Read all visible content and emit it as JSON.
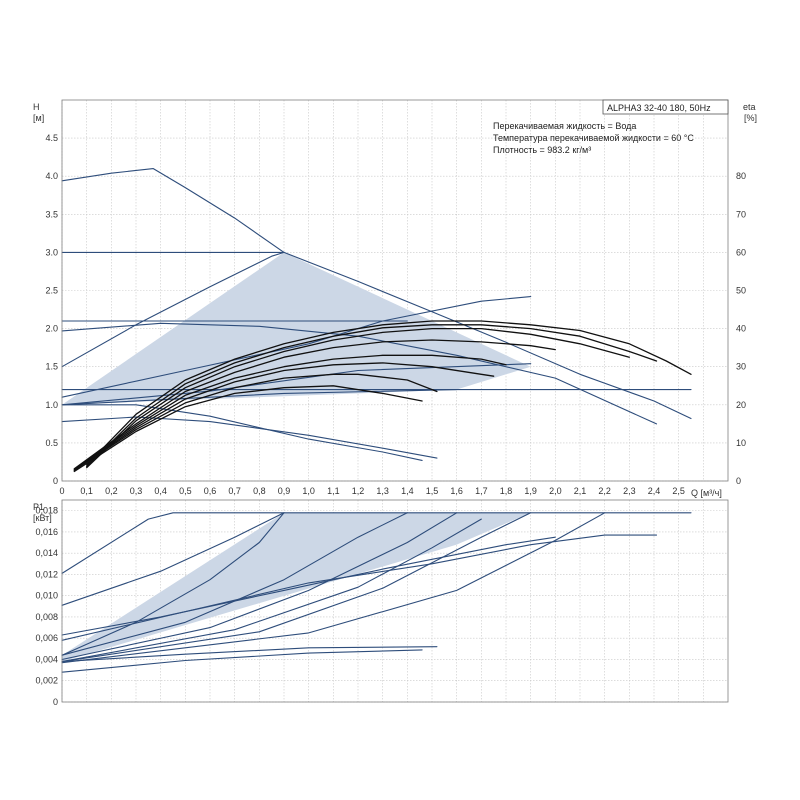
{
  "model_box": "ALPHA3 32-40 180, 50Hz",
  "info_lines": [
    "Перекачиваемая жидкость = Вода",
    "Температура перекачиваемой жидкости = 60 °C",
    "Плотность = 983.2 кг/м³"
  ],
  "colors": {
    "curve": "#2e4d7b",
    "eta": "#111111",
    "fill": "#ccd7e6",
    "grid": "#c8c8c8"
  },
  "chart_data": [
    {
      "type": "line",
      "name": "head",
      "ylabel_top": "H",
      "ylabel_unit": "[м]",
      "y2label_top": "eta",
      "y2label_unit": "[%]",
      "xlabel": "Q [м³/ч]",
      "xlim": [
        0,
        2.7
      ],
      "ylim": [
        0,
        5.0
      ],
      "y2lim": [
        0,
        100
      ],
      "x_ticks": [
        "0",
        "0,1",
        "0,2",
        "0,3",
        "0,4",
        "0,5",
        "0,6",
        "0,7",
        "0,8",
        "0,9",
        "1,0",
        "1,1",
        "1,2",
        "1,3",
        "1,4",
        "1,5",
        "1,6",
        "1,7",
        "1,8",
        "1,9",
        "2,0",
        "2,1",
        "2,2",
        "2,3",
        "2,4",
        "2,5"
      ],
      "y_ticks": [
        "0",
        "0.5",
        "1.0",
        "1.5",
        "2.0",
        "2.5",
        "3.0",
        "3.5",
        "4.0",
        "4.5"
      ],
      "y2_ticks": [
        "0",
        "10",
        "20",
        "30",
        "40",
        "50",
        "60",
        "70",
        "80"
      ],
      "operating_area": [
        [
          0,
          1.0
        ],
        [
          0.9,
          3.0
        ],
        [
          1.9,
          1.5
        ],
        [
          1.6,
          1.2
        ],
        [
          0,
          1.0
        ]
      ],
      "series": [
        {
          "kind": "pump",
          "points": [
            [
              0,
              3.94
            ],
            [
              0.2,
              4.04
            ],
            [
              0.37,
              4.1
            ],
            [
              0.5,
              3.85
            ],
            [
              0.7,
              3.45
            ],
            [
              0.9,
              3.0
            ],
            [
              1.2,
              2.62
            ],
            [
              1.5,
              2.22
            ],
            [
              1.8,
              1.82
            ],
            [
              2.1,
              1.4
            ],
            [
              2.4,
              1.05
            ],
            [
              2.55,
              0.82
            ]
          ]
        },
        {
          "kind": "pump",
          "points": [
            [
              0,
              3.0
            ],
            [
              0.9,
              3.0
            ]
          ]
        },
        {
          "kind": "pump",
          "points": [
            [
              0,
              2.1
            ],
            [
              1.4,
              2.1
            ]
          ]
        },
        {
          "kind": "pump",
          "points": [
            [
              0,
              1.2
            ],
            [
              2.55,
              1.2
            ]
          ]
        },
        {
          "kind": "pump",
          "points": [
            [
              0,
              1.5
            ],
            [
              0.3,
              2.05
            ],
            [
              0.6,
              2.55
            ],
            [
              0.85,
              2.95
            ],
            [
              0.9,
              3.0
            ]
          ]
        },
        {
          "kind": "pump",
          "points": [
            [
              0,
              1.1
            ],
            [
              0.5,
              1.45
            ],
            [
              1.0,
              1.8
            ],
            [
              1.3,
              2.1
            ],
            [
              1.7,
              2.36
            ],
            [
              1.9,
              2.42
            ]
          ]
        },
        {
          "kind": "pump",
          "points": [
            [
              0,
              1.0
            ],
            [
              0.6,
              1.18
            ],
            [
              1.2,
              1.45
            ],
            [
              1.9,
              1.54
            ]
          ]
        },
        {
          "kind": "pump",
          "points": [
            [
              0,
              1.0
            ],
            [
              0.9,
              1.15
            ],
            [
              1.6,
              1.2
            ]
          ]
        },
        {
          "kind": "pump",
          "points": [
            [
              0,
              1.97
            ],
            [
              0.4,
              2.07
            ],
            [
              0.8,
              2.03
            ],
            [
              1.2,
              1.9
            ],
            [
              1.6,
              1.65
            ],
            [
              2.0,
              1.35
            ],
            [
              2.41,
              0.75
            ]
          ]
        },
        {
          "kind": "pump",
          "points": [
            [
              0,
              0.78
            ],
            [
              0.3,
              0.84
            ],
            [
              0.6,
              0.78
            ],
            [
              1.0,
              0.6
            ],
            [
              1.3,
              0.43
            ],
            [
              1.52,
              0.3
            ]
          ]
        },
        {
          "kind": "pump",
          "points": [
            [
              0,
              1.0
            ],
            [
              0.3,
              1.0
            ],
            [
              0.6,
              0.85
            ],
            [
              1.0,
              0.55
            ],
            [
              1.3,
              0.38
            ],
            [
              1.46,
              0.27
            ]
          ]
        },
        {
          "kind": "eta",
          "points": [
            [
              0.1,
              4.2
            ],
            [
              0.3,
              17.5
            ],
            [
              0.5,
              26.5
            ],
            [
              0.7,
              32
            ],
            [
              0.9,
              36
            ],
            [
              1.1,
              39
            ],
            [
              1.3,
              41
            ],
            [
              1.5,
              42
            ],
            [
              1.7,
              42
            ],
            [
              1.9,
              41
            ],
            [
              2.1,
              39.5
            ],
            [
              2.3,
              36
            ],
            [
              2.45,
              31.5
            ],
            [
              2.55,
              28
            ]
          ]
        },
        {
          "kind": "eta",
          "points": [
            [
              0.1,
              3.8
            ],
            [
              0.3,
              16.5
            ],
            [
              0.5,
              25.5
            ],
            [
              0.7,
              31
            ],
            [
              0.9,
              35
            ],
            [
              1.1,
              38
            ],
            [
              1.3,
              40.2
            ],
            [
              1.5,
              41
            ],
            [
              1.7,
              41
            ],
            [
              1.9,
              40
            ],
            [
              2.1,
              38
            ],
            [
              2.3,
              34
            ],
            [
              2.41,
              31.5
            ]
          ]
        },
        {
          "kind": "eta",
          "points": [
            [
              0.1,
              3.5
            ],
            [
              0.3,
              15.8
            ],
            [
              0.5,
              24.5
            ],
            [
              0.7,
              30
            ],
            [
              0.9,
              34
            ],
            [
              1.1,
              37
            ],
            [
              1.3,
              39
            ],
            [
              1.5,
              40
            ],
            [
              1.7,
              40
            ],
            [
              1.9,
              38.5
            ],
            [
              2.1,
              36
            ],
            [
              2.3,
              32.5
            ]
          ]
        },
        {
          "kind": "eta",
          "points": [
            [
              0.05,
              3.2
            ],
            [
              0.3,
              15
            ],
            [
              0.5,
              23.5
            ],
            [
              0.7,
              28.5
            ],
            [
              0.9,
              32.5
            ],
            [
              1.1,
              35
            ],
            [
              1.3,
              36.5
            ],
            [
              1.5,
              37
            ],
            [
              1.7,
              36.5
            ],
            [
              1.9,
              35.5
            ],
            [
              2.0,
              34.5
            ]
          ]
        },
        {
          "kind": "eta",
          "points": [
            [
              0.05,
              3.0
            ],
            [
              0.3,
              14.5
            ],
            [
              0.5,
              22.5
            ],
            [
              0.7,
              27
            ],
            [
              0.9,
              30
            ],
            [
              1.1,
              32
            ],
            [
              1.3,
              33
            ],
            [
              1.5,
              33
            ],
            [
              1.7,
              32
            ],
            [
              1.8,
              30.5
            ]
          ]
        },
        {
          "kind": "eta",
          "points": [
            [
              0.05,
              2.8
            ],
            [
              0.3,
              14
            ],
            [
              0.5,
              21.5
            ],
            [
              0.7,
              26
            ],
            [
              0.9,
              29
            ],
            [
              1.1,
              30.5
            ],
            [
              1.3,
              31
            ],
            [
              1.5,
              30
            ],
            [
              1.7,
              28
            ],
            [
              1.75,
              27.5
            ]
          ]
        },
        {
          "kind": "eta",
          "points": [
            [
              0.05,
              2.8
            ],
            [
              0.3,
              13.5
            ],
            [
              0.5,
              20.5
            ],
            [
              0.7,
              24.5
            ],
            [
              0.9,
              27
            ],
            [
              1.1,
              28
            ],
            [
              1.2,
              28
            ],
            [
              1.4,
              26.5
            ],
            [
              1.52,
              23.5
            ]
          ]
        },
        {
          "kind": "eta",
          "points": [
            [
              0.05,
              2.5
            ],
            [
              0.3,
              13
            ],
            [
              0.5,
              19.5
            ],
            [
              0.7,
              23
            ],
            [
              0.9,
              24.5
            ],
            [
              1.1,
              25
            ],
            [
              1.3,
              23
            ],
            [
              1.46,
              21
            ]
          ]
        }
      ]
    },
    {
      "type": "line",
      "name": "power",
      "ylabel_top": "P1",
      "ylabel_unit": "[кВт]",
      "xlim": [
        0,
        2.7
      ],
      "ylim": [
        0,
        0.019
      ],
      "y_ticks": [
        "0",
        "0,002",
        "0,004",
        "0,006",
        "0,008",
        "0,010",
        "0,012",
        "0,014",
        "0,016",
        "0,018"
      ],
      "operating_area": [
        [
          0,
          0.0044
        ],
        [
          0.9,
          0.0178
        ],
        [
          1.9,
          0.0178
        ],
        [
          1.6,
          0.0148
        ],
        [
          0,
          0.0038
        ]
      ],
      "series": [
        {
          "points": [
            [
              0,
              0.0121
            ],
            [
              0.35,
              0.0172
            ],
            [
              0.45,
              0.0178
            ],
            [
              2.55,
              0.0178
            ]
          ]
        },
        {
          "points": [
            [
              0,
              0.0044
            ],
            [
              0.3,
              0.0075
            ],
            [
              0.6,
              0.0115
            ],
            [
              0.8,
              0.015
            ],
            [
              0.9,
              0.0178
            ]
          ]
        },
        {
          "points": [
            [
              0,
              0.0091
            ],
            [
              0.4,
              0.0123
            ],
            [
              0.7,
              0.0155
            ],
            [
              0.9,
              0.0178
            ]
          ]
        },
        {
          "points": [
            [
              0,
              0.0044
            ],
            [
              0.5,
              0.0075
            ],
            [
              0.9,
              0.0115
            ],
            [
              1.2,
              0.0155
            ],
            [
              1.4,
              0.0178
            ]
          ]
        },
        {
          "points": [
            [
              0,
              0.004
            ],
            [
              0.6,
              0.007
            ],
            [
              1.0,
              0.0105
            ],
            [
              1.4,
              0.015
            ],
            [
              1.6,
              0.0178
            ]
          ]
        },
        {
          "points": [
            [
              0,
              0.0038
            ],
            [
              0.7,
              0.0068
            ],
            [
              1.2,
              0.0108
            ],
            [
              1.5,
              0.0145
            ],
            [
              1.7,
              0.0172
            ]
          ]
        },
        {
          "points": [
            [
              0,
              0.0038
            ],
            [
              0.8,
              0.0066
            ],
            [
              1.3,
              0.0107
            ],
            [
              1.7,
              0.0155
            ],
            [
              1.9,
              0.0178
            ]
          ]
        },
        {
          "points": [
            [
              0,
              0.0037
            ],
            [
              1.0,
              0.0065
            ],
            [
              1.6,
              0.0105
            ],
            [
              2.0,
              0.0152
            ],
            [
              2.2,
              0.0178
            ]
          ]
        },
        {
          "points": [
            [
              0,
              0.0063
            ],
            [
              0.4,
              0.008
            ],
            [
              0.9,
              0.0105
            ],
            [
              1.3,
              0.0125
            ],
            [
              1.8,
              0.0148
            ],
            [
              2.0,
              0.0155
            ]
          ]
        },
        {
          "points": [
            [
              0,
              0.0058
            ],
            [
              0.5,
              0.0085
            ],
            [
              1.0,
              0.0112
            ],
            [
              1.5,
              0.013
            ],
            [
              1.9,
              0.0148
            ],
            [
              2.2,
              0.0157
            ],
            [
              2.41,
              0.0157
            ]
          ]
        },
        {
          "points": [
            [
              0,
              0.0038
            ],
            [
              0.5,
              0.0045
            ],
            [
              1.0,
              0.0051
            ],
            [
              1.52,
              0.0052
            ]
          ]
        },
        {
          "points": [
            [
              0,
              0.0028
            ],
            [
              0.5,
              0.0039
            ],
            [
              1.0,
              0.0046
            ],
            [
              1.46,
              0.0049
            ]
          ]
        }
      ]
    }
  ]
}
